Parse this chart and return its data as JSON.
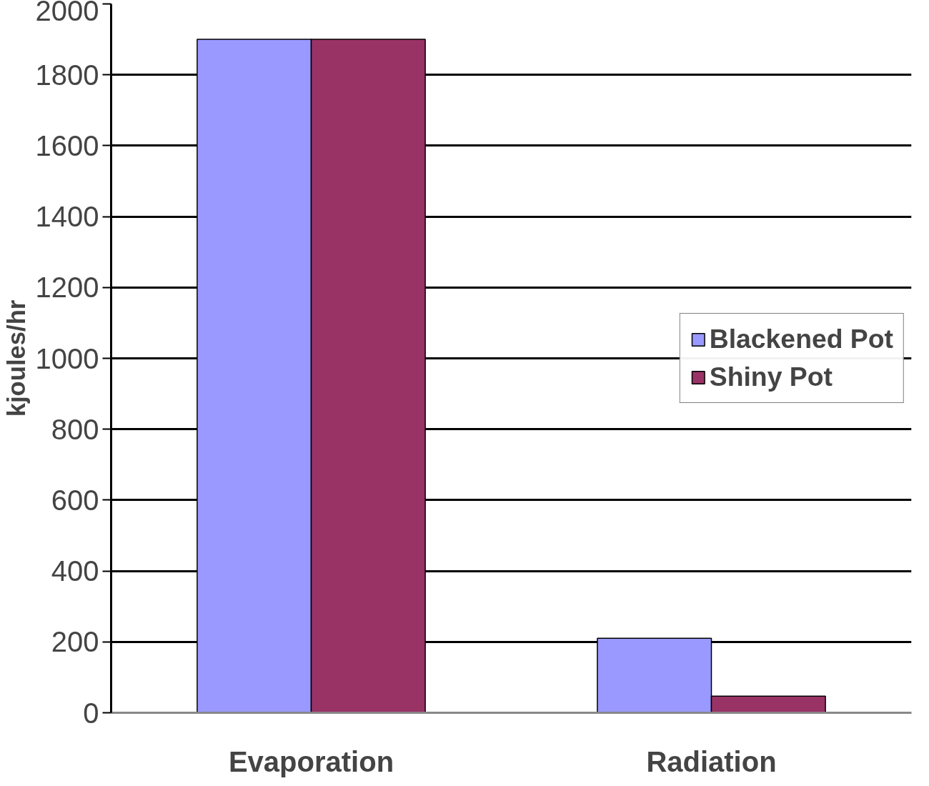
{
  "chart_data": {
    "type": "bar",
    "ylabel": "kjoules/hr",
    "categories": [
      "Evaporation",
      "Radiation"
    ],
    "series": [
      {
        "name": "Blackened Pot",
        "color": "#9999ff",
        "values": [
          1900,
          210
        ]
      },
      {
        "name": "Shiny Pot",
        "color": "#993366",
        "values": [
          1900,
          47
        ]
      }
    ],
    "ylim": [
      0,
      2000
    ],
    "yticks": [
      0,
      200,
      400,
      600,
      800,
      1000,
      1200,
      1400,
      1600,
      1800,
      2000
    ],
    "grid": "y",
    "legend": "right"
  }
}
